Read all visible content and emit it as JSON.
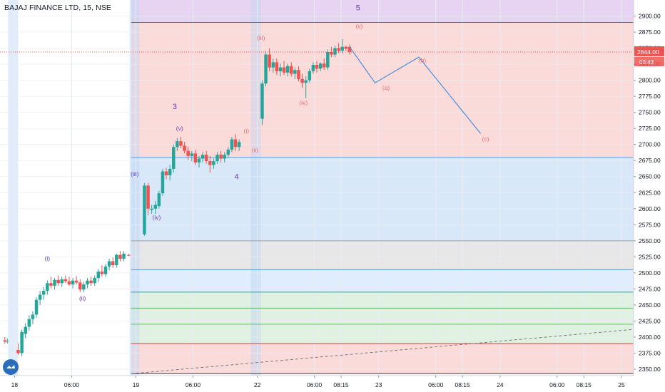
{
  "header": {
    "symbol_title": "BAJAJ FINANCE LTD, 15, NSE"
  },
  "price_scale": {
    "ticks": [
      "2900.00",
      "2875.00",
      "2850.00",
      "2825.00",
      "2800.00",
      "2775.00",
      "2750.00",
      "2725.00",
      "2700.00",
      "2675.00",
      "2650.00",
      "2625.00",
      "2600.00",
      "2575.00",
      "2550.00",
      "2525.00",
      "2500.00",
      "2475.00",
      "2450.00",
      "2425.00",
      "2400.00",
      "2375.00",
      "2350.00"
    ],
    "last_price_label": "2844.00",
    "countdown_label": "03:43"
  },
  "time_scale": {
    "ticks": [
      {
        "label": "18",
        "session_pos": 0.0
      },
      {
        "label": "06:00",
        "session_pos": 0.47
      },
      {
        "label": "19",
        "session_pos": 1.0
      },
      {
        "label": "06:00",
        "session_pos": 1.47
      },
      {
        "label": "22",
        "session_pos": 2.0
      },
      {
        "label": "06:00",
        "session_pos": 2.47
      },
      {
        "label": "08:15",
        "session_pos": 2.69
      },
      {
        "label": "23",
        "session_pos": 3.0
      },
      {
        "label": "06:00",
        "session_pos": 3.47
      },
      {
        "label": "08:15",
        "session_pos": 3.69
      },
      {
        "label": "24",
        "session_pos": 4.0
      },
      {
        "label": "06:00",
        "session_pos": 4.47
      },
      {
        "label": "08:15",
        "session_pos": 4.69
      },
      {
        "label": "25",
        "session_pos": 5.0
      }
    ]
  },
  "colors": {
    "up": "#26a69a",
    "down": "#ef5350",
    "wave_purple": "#673ab7",
    "wave_red": "#e57373",
    "projection": "#4a90d9"
  },
  "chart_data": {
    "type": "candlestick",
    "title": "BAJAJ FINANCE LTD, 15, NSE",
    "y_range": [
      2340,
      2925
    ],
    "session_range": [
      -0.12,
      5.1
    ],
    "last_price": 2844.0,
    "zones": [
      {
        "from": 2925,
        "to": 2890,
        "color": "#e3cdf0"
      },
      {
        "from": 2890,
        "to": 2680,
        "color": "#fad3d3"
      },
      {
        "from": 2680,
        "to": 2550,
        "color": "#d2e4f8"
      },
      {
        "from": 2550,
        "to": 2505,
        "color": "#e3e3e3"
      },
      {
        "from": 2505,
        "to": 2470,
        "color": "#dbeafb"
      },
      {
        "from": 2470,
        "to": 2390,
        "color": "#dcefdc"
      },
      {
        "from": 2390,
        "to": 2343,
        "color": "#fad3d3"
      }
    ],
    "levels": [
      {
        "price": 2890,
        "color": "#e53935"
      },
      {
        "price": 2680,
        "color": "#5b9bd5"
      },
      {
        "price": 2550,
        "color": "#9e9e9e"
      },
      {
        "price": 2505,
        "color": "#5b9bd5"
      },
      {
        "price": 2470,
        "color": "#26a69a"
      },
      {
        "price": 2445,
        "color": "#66bb6a"
      },
      {
        "price": 2420,
        "color": "#66bb6a"
      },
      {
        "price": 2390,
        "color": "#e53935"
      },
      {
        "price": 2343,
        "color": "#424242"
      }
    ],
    "candles": [
      {
        "t": -0.08,
        "o": 2395,
        "h": 2400,
        "l": 2390,
        "c": 2393
      },
      {
        "t": -0.06,
        "o": 2393,
        "h": 2398,
        "l": 2390,
        "c": 2394
      },
      {
        "t": 0.03,
        "o": 2380,
        "h": 2390,
        "l": 2372,
        "c": 2375
      },
      {
        "t": 0.06,
        "o": 2375,
        "h": 2412,
        "l": 2370,
        "c": 2408
      },
      {
        "t": 0.09,
        "o": 2405,
        "h": 2422,
        "l": 2398,
        "c": 2416
      },
      {
        "t": 0.12,
        "o": 2416,
        "h": 2434,
        "l": 2410,
        "c": 2428
      },
      {
        "t": 0.15,
        "o": 2428,
        "h": 2440,
        "l": 2420,
        "c": 2435
      },
      {
        "t": 0.18,
        "o": 2435,
        "h": 2462,
        "l": 2430,
        "c": 2458
      },
      {
        "t": 0.21,
        "o": 2458,
        "h": 2472,
        "l": 2450,
        "c": 2466
      },
      {
        "t": 0.24,
        "o": 2466,
        "h": 2478,
        "l": 2458,
        "c": 2472
      },
      {
        "t": 0.27,
        "o": 2472,
        "h": 2488,
        "l": 2466,
        "c": 2484
      },
      {
        "t": 0.3,
        "o": 2484,
        "h": 2494,
        "l": 2476,
        "c": 2480
      },
      {
        "t": 0.33,
        "o": 2480,
        "h": 2492,
        "l": 2474,
        "c": 2489
      },
      {
        "t": 0.36,
        "o": 2489,
        "h": 2496,
        "l": 2480,
        "c": 2484
      },
      {
        "t": 0.39,
        "o": 2484,
        "h": 2494,
        "l": 2478,
        "c": 2490
      },
      {
        "t": 0.42,
        "o": 2490,
        "h": 2496,
        "l": 2484,
        "c": 2487
      },
      {
        "t": 0.45,
        "o": 2487,
        "h": 2494,
        "l": 2480,
        "c": 2482
      },
      {
        "t": 0.48,
        "o": 2482,
        "h": 2492,
        "l": 2476,
        "c": 2488
      },
      {
        "t": 0.51,
        "o": 2488,
        "h": 2495,
        "l": 2482,
        "c": 2485
      },
      {
        "t": 0.54,
        "o": 2485,
        "h": 2490,
        "l": 2470,
        "c": 2474
      },
      {
        "t": 0.57,
        "o": 2474,
        "h": 2486,
        "l": 2470,
        "c": 2482
      },
      {
        "t": 0.6,
        "o": 2482,
        "h": 2492,
        "l": 2476,
        "c": 2488
      },
      {
        "t": 0.63,
        "o": 2488,
        "h": 2494,
        "l": 2480,
        "c": 2484
      },
      {
        "t": 0.66,
        "o": 2484,
        "h": 2496,
        "l": 2480,
        "c": 2492
      },
      {
        "t": 0.69,
        "o": 2492,
        "h": 2506,
        "l": 2486,
        "c": 2502
      },
      {
        "t": 0.72,
        "o": 2502,
        "h": 2512,
        "l": 2494,
        "c": 2498
      },
      {
        "t": 0.75,
        "o": 2498,
        "h": 2514,
        "l": 2494,
        "c": 2510
      },
      {
        "t": 0.78,
        "o": 2510,
        "h": 2522,
        "l": 2504,
        "c": 2518
      },
      {
        "t": 0.81,
        "o": 2518,
        "h": 2524,
        "l": 2508,
        "c": 2512
      },
      {
        "t": 0.84,
        "o": 2512,
        "h": 2530,
        "l": 2508,
        "c": 2528
      },
      {
        "t": 0.87,
        "o": 2528,
        "h": 2534,
        "l": 2518,
        "c": 2522
      },
      {
        "t": 0.9,
        "o": 2522,
        "h": 2534,
        "l": 2518,
        "c": 2530
      },
      {
        "t": 0.94,
        "o": 2528,
        "h": 2530,
        "l": 2526,
        "c": 2527
      },
      {
        "t": 1.07,
        "o": 2560,
        "h": 2640,
        "l": 2558,
        "c": 2636
      },
      {
        "t": 1.1,
        "o": 2636,
        "h": 2640,
        "l": 2590,
        "c": 2600
      },
      {
        "t": 1.13,
        "o": 2598,
        "h": 2606,
        "l": 2592,
        "c": 2600
      },
      {
        "t": 1.16,
        "o": 2600,
        "h": 2612,
        "l": 2592,
        "c": 2606
      },
      {
        "t": 1.19,
        "o": 2604,
        "h": 2628,
        "l": 2600,
        "c": 2624
      },
      {
        "t": 1.22,
        "o": 2624,
        "h": 2662,
        "l": 2620,
        "c": 2658
      },
      {
        "t": 1.25,
        "o": 2658,
        "h": 2664,
        "l": 2646,
        "c": 2652
      },
      {
        "t": 1.28,
        "o": 2652,
        "h": 2668,
        "l": 2644,
        "c": 2662
      },
      {
        "t": 1.31,
        "o": 2662,
        "h": 2700,
        "l": 2656,
        "c": 2696
      },
      {
        "t": 1.34,
        "o": 2696,
        "h": 2710,
        "l": 2690,
        "c": 2705
      },
      {
        "t": 1.37,
        "o": 2705,
        "h": 2712,
        "l": 2694,
        "c": 2698
      },
      {
        "t": 1.4,
        "o": 2698,
        "h": 2704,
        "l": 2686,
        "c": 2690
      },
      {
        "t": 1.43,
        "o": 2690,
        "h": 2696,
        "l": 2676,
        "c": 2682
      },
      {
        "t": 1.46,
        "o": 2682,
        "h": 2690,
        "l": 2674,
        "c": 2686
      },
      {
        "t": 1.49,
        "o": 2686,
        "h": 2692,
        "l": 2668,
        "c": 2672
      },
      {
        "t": 1.52,
        "o": 2672,
        "h": 2682,
        "l": 2664,
        "c": 2678
      },
      {
        "t": 1.55,
        "o": 2678,
        "h": 2688,
        "l": 2672,
        "c": 2684
      },
      {
        "t": 1.58,
        "o": 2684,
        "h": 2690,
        "l": 2670,
        "c": 2674
      },
      {
        "t": 1.61,
        "o": 2674,
        "h": 2682,
        "l": 2656,
        "c": 2668
      },
      {
        "t": 1.64,
        "o": 2668,
        "h": 2678,
        "l": 2662,
        "c": 2674
      },
      {
        "t": 1.67,
        "o": 2674,
        "h": 2688,
        "l": 2670,
        "c": 2684
      },
      {
        "t": 1.7,
        "o": 2684,
        "h": 2690,
        "l": 2672,
        "c": 2678
      },
      {
        "t": 1.73,
        "o": 2678,
        "h": 2688,
        "l": 2672,
        "c": 2684
      },
      {
        "t": 1.76,
        "o": 2684,
        "h": 2696,
        "l": 2680,
        "c": 2692
      },
      {
        "t": 1.79,
        "o": 2692,
        "h": 2712,
        "l": 2688,
        "c": 2708
      },
      {
        "t": 1.82,
        "o": 2708,
        "h": 2716,
        "l": 2690,
        "c": 2696
      },
      {
        "t": 1.85,
        "o": 2696,
        "h": 2708,
        "l": 2690,
        "c": 2704
      },
      {
        "t": 2.04,
        "o": 2740,
        "h": 2800,
        "l": 2730,
        "c": 2795
      },
      {
        "t": 2.07,
        "o": 2795,
        "h": 2846,
        "l": 2790,
        "c": 2840
      },
      {
        "t": 2.1,
        "o": 2840,
        "h": 2850,
        "l": 2814,
        "c": 2820
      },
      {
        "t": 2.13,
        "o": 2820,
        "h": 2834,
        "l": 2812,
        "c": 2828
      },
      {
        "t": 2.16,
        "o": 2828,
        "h": 2834,
        "l": 2808,
        "c": 2814
      },
      {
        "t": 2.19,
        "o": 2814,
        "h": 2826,
        "l": 2806,
        "c": 2820
      },
      {
        "t": 2.22,
        "o": 2820,
        "h": 2830,
        "l": 2808,
        "c": 2812
      },
      {
        "t": 2.25,
        "o": 2812,
        "h": 2826,
        "l": 2806,
        "c": 2822
      },
      {
        "t": 2.28,
        "o": 2822,
        "h": 2828,
        "l": 2806,
        "c": 2810
      },
      {
        "t": 2.31,
        "o": 2810,
        "h": 2820,
        "l": 2802,
        "c": 2816
      },
      {
        "t": 2.34,
        "o": 2816,
        "h": 2822,
        "l": 2798,
        "c": 2802
      },
      {
        "t": 2.37,
        "o": 2802,
        "h": 2810,
        "l": 2788,
        "c": 2796
      },
      {
        "t": 2.4,
        "o": 2796,
        "h": 2806,
        "l": 2772,
        "c": 2800
      },
      {
        "t": 2.43,
        "o": 2800,
        "h": 2818,
        "l": 2796,
        "c": 2814
      },
      {
        "t": 2.46,
        "o": 2814,
        "h": 2828,
        "l": 2810,
        "c": 2824
      },
      {
        "t": 2.49,
        "o": 2824,
        "h": 2830,
        "l": 2812,
        "c": 2818
      },
      {
        "t": 2.52,
        "o": 2818,
        "h": 2828,
        "l": 2814,
        "c": 2826
      },
      {
        "t": 2.55,
        "o": 2826,
        "h": 2834,
        "l": 2816,
        "c": 2820
      },
      {
        "t": 2.58,
        "o": 2820,
        "h": 2848,
        "l": 2816,
        "c": 2844
      },
      {
        "t": 2.61,
        "o": 2844,
        "h": 2852,
        "l": 2836,
        "c": 2840
      },
      {
        "t": 2.64,
        "o": 2840,
        "h": 2854,
        "l": 2836,
        "c": 2850
      },
      {
        "t": 2.67,
        "o": 2850,
        "h": 2858,
        "l": 2842,
        "c": 2846
      },
      {
        "t": 2.7,
        "o": 2846,
        "h": 2864,
        "l": 2842,
        "c": 2852
      },
      {
        "t": 2.73,
        "o": 2852,
        "h": 2854,
        "l": 2846,
        "c": 2849
      },
      {
        "t": 2.76,
        "o": 2852,
        "h": 2856,
        "l": 2840,
        "c": 2844
      }
    ],
    "projection_path": [
      {
        "t": 2.76,
        "p": 2852
      },
      {
        "t": 2.97,
        "p": 2796
      },
      {
        "t": 3.33,
        "p": 2836
      },
      {
        "t": 3.84,
        "p": 2717
      }
    ],
    "trendline": [
      {
        "t": 0.96,
        "p": 2343
      },
      {
        "t": 5.1,
        "p": 2412
      }
    ],
    "labels": [
      {
        "text": "(i)",
        "t": 0.27,
        "p": 2519,
        "color": "#673ab7"
      },
      {
        "text": "(ii)",
        "t": 0.56,
        "p": 2457,
        "color": "#673ab7"
      },
      {
        "text": "(iii)",
        "t": 0.99,
        "p": 2651,
        "color": "#673ab7"
      },
      {
        "text": "(iv)",
        "t": 1.17,
        "p": 2583,
        "color": "#673ab7"
      },
      {
        "text": "3",
        "t": 1.32,
        "p": 2755,
        "color": "#673ab7"
      },
      {
        "text": "(v)",
        "t": 1.36,
        "p": 2722,
        "color": "#673ab7"
      },
      {
        "text": "4",
        "t": 1.83,
        "p": 2646,
        "color": "#673ab7"
      },
      {
        "text": "(i)",
        "t": 1.91,
        "p": 2718,
        "color": "#e57373"
      },
      {
        "text": "(ii)",
        "t": 1.98,
        "p": 2688,
        "color": "#e57373"
      },
      {
        "text": "(iii)",
        "t": 2.03,
        "p": 2863,
        "color": "#e57373"
      },
      {
        "text": "(iv)",
        "t": 2.38,
        "p": 2762,
        "color": "#e57373"
      },
      {
        "text": "5",
        "t": 2.83,
        "p": 2909,
        "color": "#673ab7"
      },
      {
        "text": "(v)",
        "t": 2.84,
        "p": 2881,
        "color": "#e57373"
      },
      {
        "text": "(a)",
        "t": 3.06,
        "p": 2785,
        "color": "#e57373"
      },
      {
        "text": "(b)",
        "t": 3.36,
        "p": 2828,
        "color": "#e57373"
      },
      {
        "text": "(c)",
        "t": 3.88,
        "p": 2705,
        "color": "#e57373"
      }
    ]
  }
}
